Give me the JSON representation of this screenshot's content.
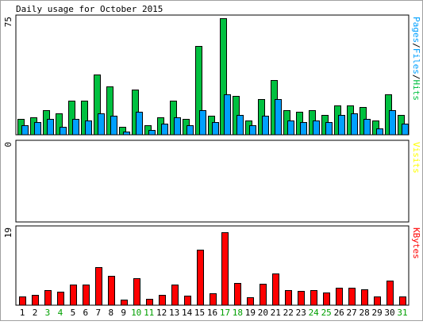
{
  "title": "Daily usage for October 2015",
  "colors": {
    "background": "#ffffff",
    "border": "#000000",
    "hits": "#00c040",
    "files": "#00a0ff",
    "visits": "#ffff00",
    "kbytes": "#ff0000",
    "weekday_label": "#000000",
    "weekend_label": "#00a000"
  },
  "chart_data": [
    {
      "type": "bar",
      "panel": "top",
      "ylabel_parts": [
        {
          "text": "Pages",
          "color": "#00a0ff"
        },
        {
          "text": "/",
          "color": "#000000"
        },
        {
          "text": "Files",
          "color": "#00a0ff"
        },
        {
          "text": "/",
          "color": "#000000"
        },
        {
          "text": "Hits",
          "color": "#00c040"
        }
      ],
      "ymax_label": "75",
      "ylim": [
        0,
        75
      ],
      "categories": [
        "1",
        "2",
        "3",
        "4",
        "5",
        "6",
        "7",
        "8",
        "9",
        "10",
        "11",
        "12",
        "13",
        "14",
        "15",
        "16",
        "17",
        "18",
        "19",
        "20",
        "21",
        "22",
        "23",
        "24",
        "25",
        "26",
        "27",
        "28",
        "29",
        "30",
        "31"
      ],
      "series": [
        {
          "name": "Hits",
          "color": "#00c040",
          "values": [
            10,
            11,
            16,
            14,
            22,
            22,
            39,
            31,
            5,
            29,
            6,
            11,
            22,
            10,
            57,
            12,
            75,
            25,
            9,
            23,
            35,
            16,
            15,
            16,
            13,
            19,
            19,
            18,
            9,
            26,
            13
          ]
        },
        {
          "name": "Files",
          "color": "#00a0ff",
          "values": [
            6,
            8,
            10,
            5,
            10,
            9,
            14,
            12,
            2,
            15,
            3,
            7,
            11,
            6,
            16,
            8,
            26,
            13,
            6,
            12,
            23,
            9,
            8,
            9,
            8,
            13,
            14,
            10,
            4,
            16,
            7
          ]
        },
        {
          "name": "Pages",
          "color": "#00a0ff",
          "values": [
            0,
            0,
            0,
            0,
            0,
            0,
            0,
            0,
            0,
            0,
            0,
            0,
            0,
            0,
            0,
            0,
            0,
            0,
            0,
            0,
            0,
            0,
            0,
            0,
            0,
            0,
            0,
            0,
            0,
            0,
            0
          ]
        }
      ]
    },
    {
      "type": "bar",
      "panel": "middle",
      "ylabel_parts": [
        {
          "text": "Visits",
          "color": "#ffff00"
        }
      ],
      "ymax_label": "0",
      "ylim": [
        0,
        1
      ],
      "categories": [
        "1",
        "2",
        "3",
        "4",
        "5",
        "6",
        "7",
        "8",
        "9",
        "10",
        "11",
        "12",
        "13",
        "14",
        "15",
        "16",
        "17",
        "18",
        "19",
        "20",
        "21",
        "22",
        "23",
        "24",
        "25",
        "26",
        "27",
        "28",
        "29",
        "30",
        "31"
      ],
      "series": [
        {
          "name": "Visits",
          "color": "#ffff00",
          "values": [
            0,
            0,
            0,
            0,
            0,
            0,
            0,
            0,
            0,
            0,
            0,
            0,
            0,
            0,
            0,
            0,
            0,
            0,
            0,
            0,
            0,
            0,
            0,
            0,
            0,
            0,
            0,
            0,
            0,
            0,
            0
          ]
        }
      ]
    },
    {
      "type": "bar",
      "panel": "bottom",
      "ylabel_parts": [
        {
          "text": "KBytes",
          "color": "#ff0000"
        }
      ],
      "ymax_label": "19",
      "ylim": [
        0,
        19
      ],
      "categories": [
        "1",
        "2",
        "3",
        "4",
        "5",
        "6",
        "7",
        "8",
        "9",
        "10",
        "11",
        "12",
        "13",
        "14",
        "15",
        "16",
        "17",
        "18",
        "19",
        "20",
        "21",
        "22",
        "23",
        "24",
        "25",
        "26",
        "27",
        "28",
        "29",
        "30",
        "31"
      ],
      "series": [
        {
          "name": "KBytes",
          "color": "#ff0000",
          "values": [
            2.2,
            2.5,
            3.7,
            3.3,
            5.1,
            5.1,
            9.5,
            7.3,
            1.3,
            6.8,
            1.5,
            2.6,
            5.1,
            2.3,
            13.8,
            2.9,
            18.3,
            5.6,
            2.0,
            5.4,
            8.0,
            3.8,
            3.5,
            3.8,
            3.1,
            4.4,
            4.4,
            4.0,
            2.1,
            6.1,
            2.2
          ]
        }
      ]
    }
  ],
  "x_labels": [
    {
      "text": "1",
      "weekend": false
    },
    {
      "text": "2",
      "weekend": false
    },
    {
      "text": "3",
      "weekend": true
    },
    {
      "text": "4",
      "weekend": true
    },
    {
      "text": "5",
      "weekend": false
    },
    {
      "text": "6",
      "weekend": false
    },
    {
      "text": "7",
      "weekend": false
    },
    {
      "text": "8",
      "weekend": false
    },
    {
      "text": "9",
      "weekend": false
    },
    {
      "text": "10",
      "weekend": true
    },
    {
      "text": "11",
      "weekend": true
    },
    {
      "text": "12",
      "weekend": false
    },
    {
      "text": "13",
      "weekend": false
    },
    {
      "text": "14",
      "weekend": false
    },
    {
      "text": "15",
      "weekend": false
    },
    {
      "text": "16",
      "weekend": false
    },
    {
      "text": "17",
      "weekend": true
    },
    {
      "text": "18",
      "weekend": true
    },
    {
      "text": "19",
      "weekend": false
    },
    {
      "text": "20",
      "weekend": false
    },
    {
      "text": "21",
      "weekend": false
    },
    {
      "text": "22",
      "weekend": false
    },
    {
      "text": "23",
      "weekend": false
    },
    {
      "text": "24",
      "weekend": true
    },
    {
      "text": "25",
      "weekend": true
    },
    {
      "text": "26",
      "weekend": false
    },
    {
      "text": "27",
      "weekend": false
    },
    {
      "text": "28",
      "weekend": false
    },
    {
      "text": "29",
      "weekend": false
    },
    {
      "text": "30",
      "weekend": false
    },
    {
      "text": "31",
      "weekend": true
    }
  ]
}
